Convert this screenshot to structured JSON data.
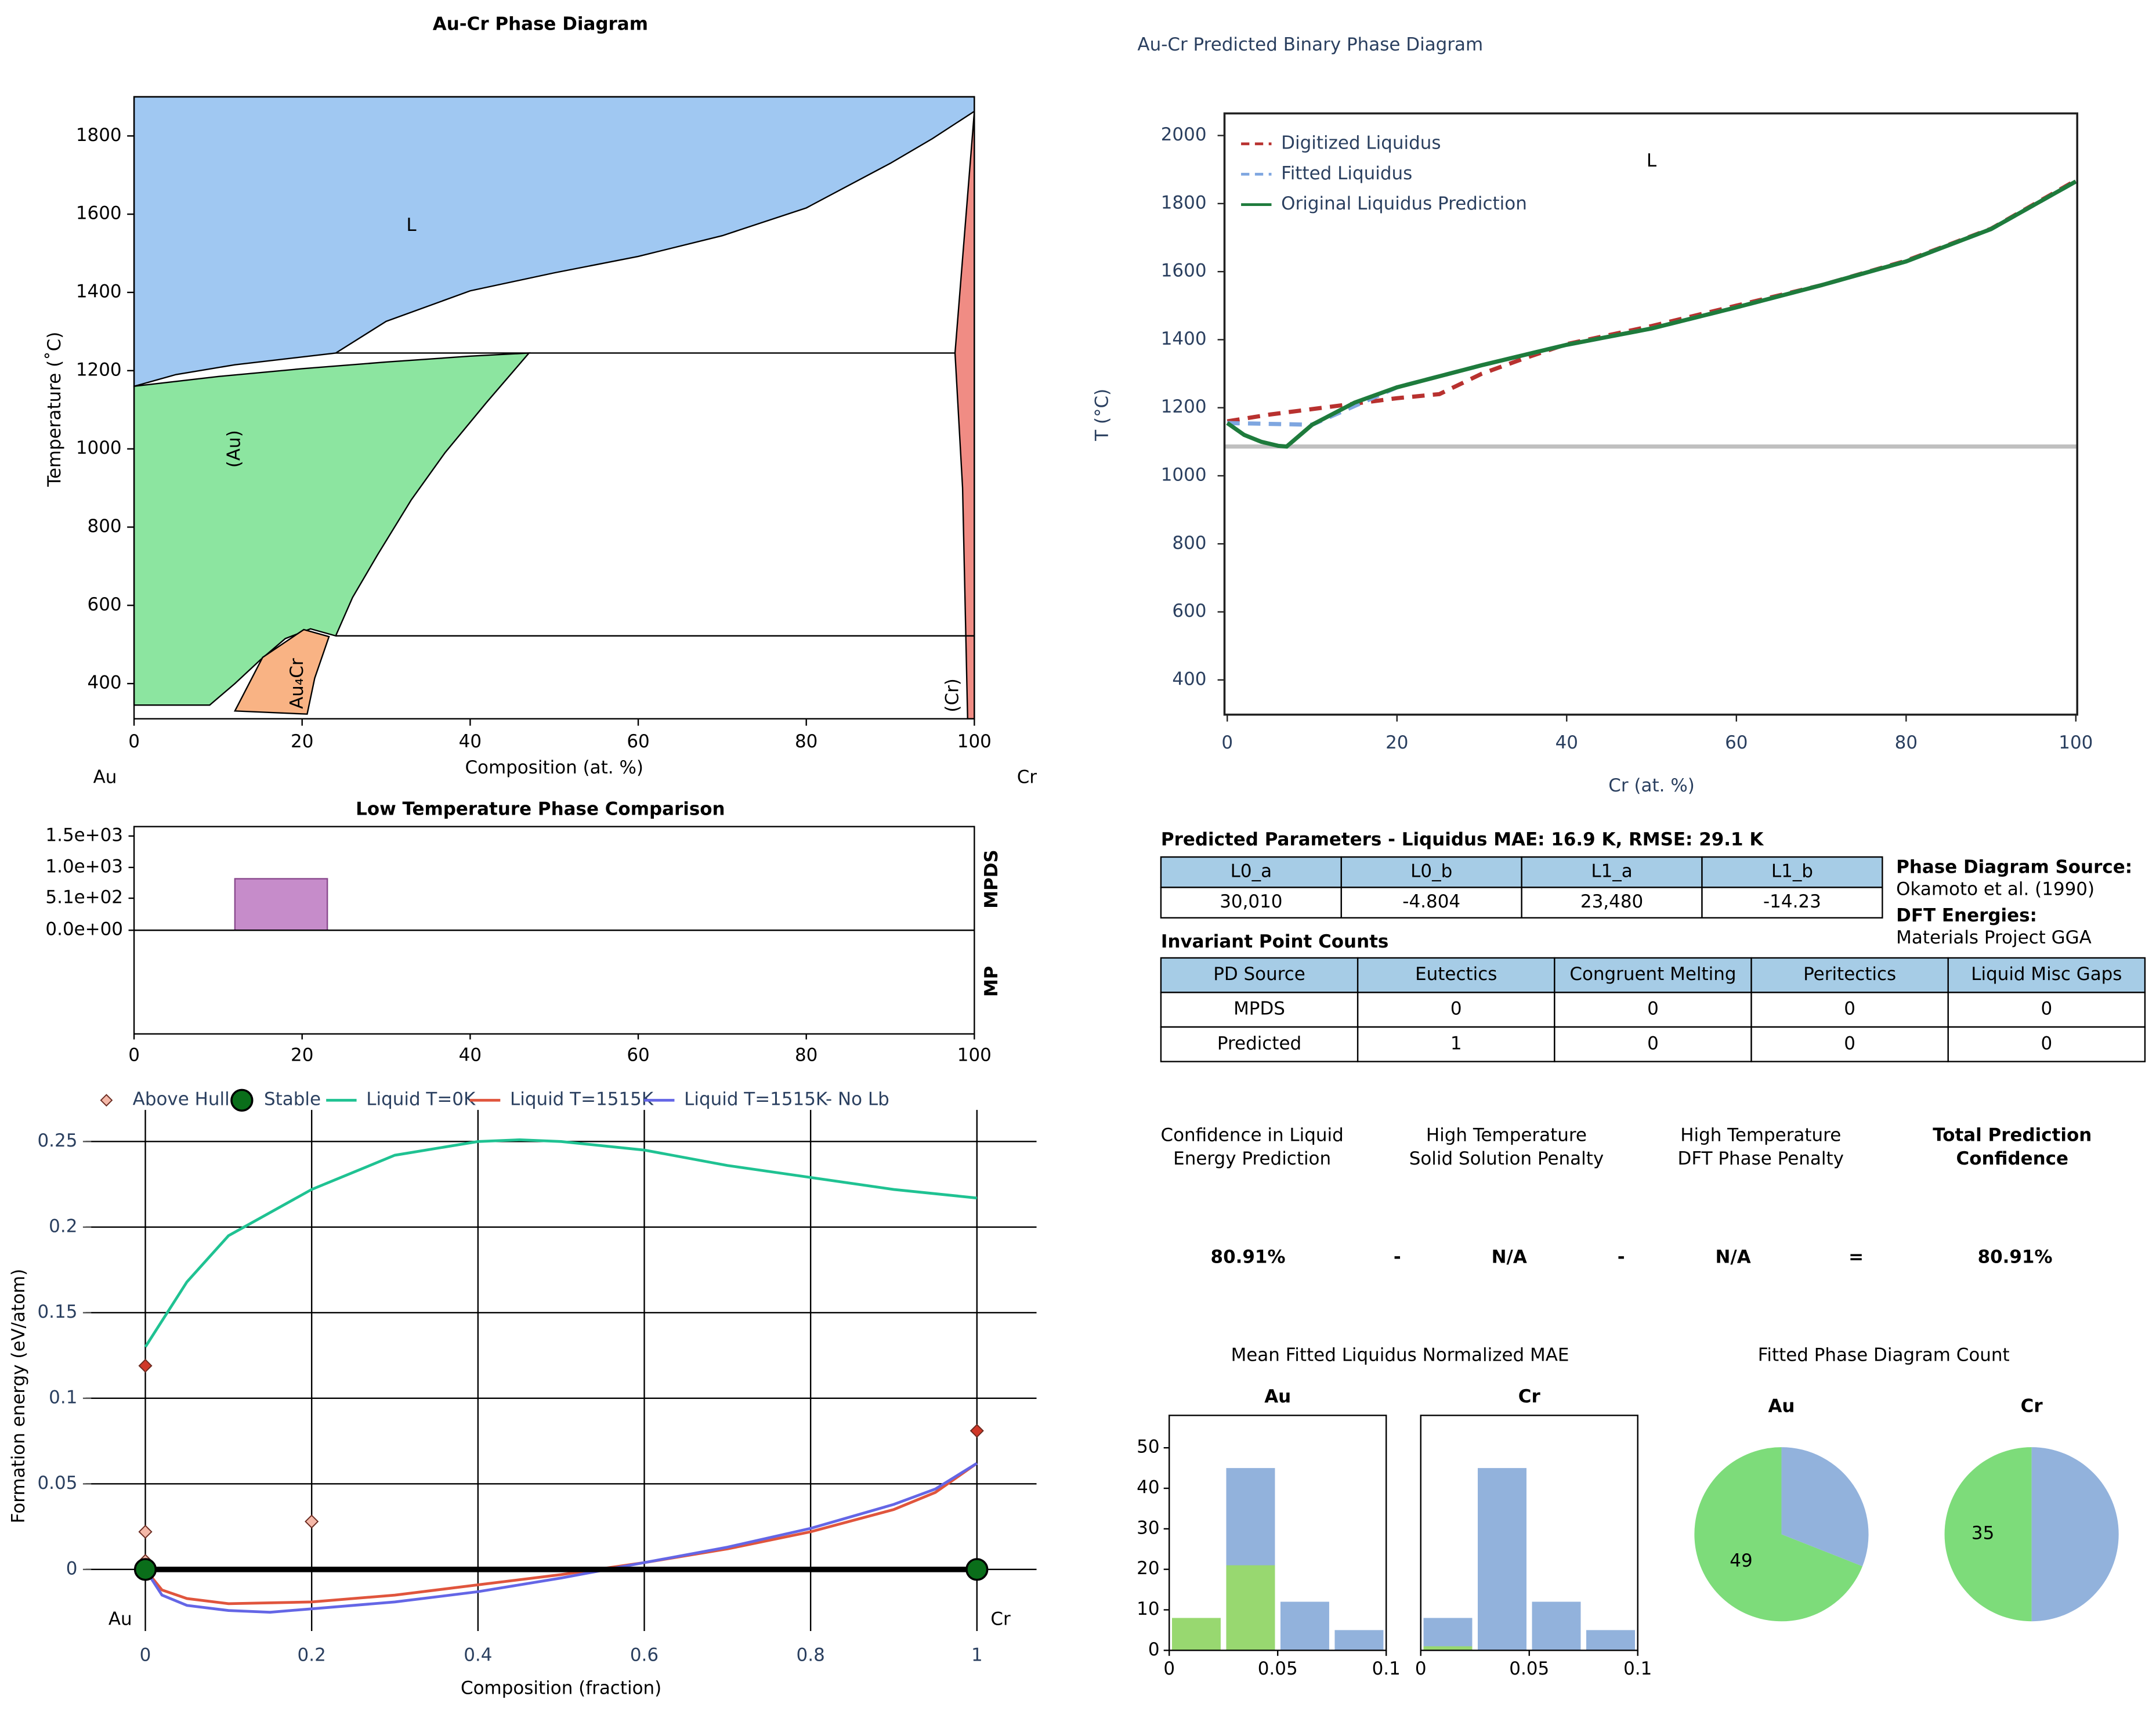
{
  "chart_data": [
    {
      "type": "phase",
      "title": "Au-Cr Phase Diagram",
      "xlabel": "Composition (at. %)",
      "ylabel": "Temperature (˚C)",
      "end_labels": [
        "Au",
        "Cr"
      ],
      "xlim": [
        0,
        100
      ],
      "ylim": [
        310,
        1900
      ],
      "xticks": [
        0,
        20,
        40,
        60,
        80,
        100
      ],
      "yticks": [
        400,
        600,
        800,
        1000,
        1200,
        1400,
        1600,
        1800
      ],
      "regions": [
        {
          "name": "L",
          "color": "#a0c8f2",
          "x": [
            0,
            0,
            100,
            100,
            95,
            90,
            80,
            70,
            60,
            50,
            40,
            30,
            24,
            12,
            5
          ],
          "y": [
            1160,
            1900,
            1900,
            1863,
            1793,
            1730,
            1616,
            1545,
            1492,
            1450,
            1404,
            1326,
            1245,
            1215,
            1190
          ]
        },
        {
          "name": "(Au)",
          "color": "#8ce5a0",
          "x": [
            0,
            10,
            20,
            30,
            40,
            47,
            42,
            37,
            33,
            29,
            26,
            24,
            21,
            18,
            15,
            12,
            9,
            0
          ],
          "y": [
            1160,
            1185,
            1205,
            1222,
            1237,
            1245,
            1120,
            990,
            870,
            730,
            620,
            522,
            540,
            515,
            460,
            400,
            345,
            345
          ]
        },
        {
          "name": "Au₄Cr",
          "color": "#f9b384",
          "x": [
            12,
            15.3,
            20.2,
            23.2,
            21.5,
            20.6
          ],
          "y": [
            330,
            467,
            538,
            520,
            414,
            322
          ]
        },
        {
          "name": "(Cr)",
          "color": "#f08c84",
          "x": [
            97.7,
            100,
            100,
            99.2,
            98.6
          ],
          "y": [
            1245,
            1863,
            310,
            310,
            900
          ]
        }
      ],
      "lines": [
        {
          "x": [
            24,
            97.7
          ],
          "y": [
            1245,
            1245
          ]
        },
        {
          "x": [
            24,
            100
          ],
          "y": [
            522,
            522
          ]
        }
      ]
    },
    {
      "type": "interval_bar",
      "title": "Low Temperature Phase Comparison",
      "rows": [
        "MPDS",
        "MP"
      ],
      "xlim": [
        0,
        100
      ],
      "xticks": [
        0,
        20,
        40,
        60,
        80,
        100
      ],
      "ylim": [
        0,
        1650
      ],
      "yticks": [
        {
          "value": 1500,
          "label": "1.5e+03"
        },
        {
          "value": 1000,
          "label": "1.0e+03"
        },
        {
          "value": 510,
          "label": "5.1e+02"
        },
        {
          "value": 0,
          "label": "0.0e+00"
        }
      ],
      "series": [
        {
          "color": "#c080c4",
          "x_ranges": [
            [
              12,
              23
            ]
          ],
          "values": [
            820
          ]
        }
      ]
    },
    {
      "type": "hull",
      "xlabel": "Composition (fraction)",
      "ylabel": "Formation energy (eV/atom)",
      "end_labels": [
        "Au",
        "Cr"
      ],
      "xlim": [
        -0.1,
        1.075
      ],
      "ylim": [
        -0.04,
        0.262
      ],
      "xticks": [
        0,
        0.2,
        0.4,
        0.6,
        0.8,
        1
      ],
      "yticks": [
        0,
        0.05,
        0.1,
        0.15,
        0.2,
        0.25
      ],
      "grid": true,
      "hull_color": "#000000",
      "series": [
        {
          "name": "Above Hull",
          "mode": "markers",
          "marker": "diamond",
          "color": "#f4b8a8",
          "x": [
            0,
            0,
            0,
            0.2,
            1
          ],
          "values": [
            0.119,
            0.022,
            0.005,
            0.028,
            0.081
          ],
          "point_colors": [
            "#d03828",
            "#f4b8a8",
            "#f4b8a8",
            "#f4b8a8",
            "#d03828"
          ]
        },
        {
          "name": "Stable",
          "mode": "markers",
          "marker": "circle",
          "color": "#0a6e1a",
          "x": [
            0,
            1
          ],
          "values": [
            0,
            0
          ]
        },
        {
          "name": "Liquid T=0K",
          "mode": "lines",
          "color": "#1fc292",
          "x": [
            0,
            0.05,
            0.1,
            0.2,
            0.3,
            0.4,
            0.45,
            0.5,
            0.6,
            0.7,
            0.8,
            0.9,
            1
          ],
          "values": [
            0.13,
            0.168,
            0.195,
            0.222,
            0.242,
            0.25,
            0.251,
            0.25,
            0.245,
            0.236,
            0.229,
            0.222,
            0.217
          ]
        },
        {
          "name": "Liquid T=1515K",
          "mode": "lines",
          "color": "#e0553d",
          "x": [
            0,
            0.02,
            0.05,
            0.1,
            0.2,
            0.3,
            0.4,
            0.5,
            0.6,
            0.7,
            0.8,
            0.9,
            0.95,
            1
          ],
          "values": [
            0,
            -0.012,
            -0.017,
            -0.02,
            -0.019,
            -0.015,
            -0.009,
            -0.003,
            0.004,
            0.012,
            0.022,
            0.035,
            0.045,
            0.062
          ]
        },
        {
          "name": "Liquid T=1515K- No Lb",
          "mode": "lines",
          "color": "#6466e6",
          "x": [
            0,
            0.02,
            0.05,
            0.1,
            0.15,
            0.2,
            0.3,
            0.4,
            0.5,
            0.6,
            0.7,
            0.8,
            0.9,
            0.95,
            1
          ],
          "values": [
            0,
            -0.015,
            -0.021,
            -0.024,
            -0.025,
            -0.023,
            -0.019,
            -0.013,
            -0.005,
            0.004,
            0.013,
            0.024,
            0.038,
            0.047,
            0.062
          ]
        }
      ]
    },
    {
      "type": "line",
      "title": "Au-Cr Predicted Binary Phase Diagram",
      "xlabel": "Cr (at. %)",
      "ylabel": "T (°C)",
      "xlim": [
        0,
        100
      ],
      "ylim": [
        298,
        2065
      ],
      "xticks": [
        0,
        20,
        40,
        60,
        80,
        100
      ],
      "yticks": [
        400,
        600,
        800,
        1000,
        1200,
        1400,
        1600,
        1800,
        2000
      ],
      "legend": "upper left",
      "annotations": [
        {
          "text": "L",
          "x": 50,
          "y": 1923
        }
      ],
      "reference_lines": [
        {
          "y": 1086,
          "color": "#c0c0c0"
        }
      ],
      "series": [
        {
          "name": "Digitized Liquidus",
          "color": "#b8312f",
          "dash": true,
          "x": [
            0,
            5,
            10,
            15,
            20,
            25,
            30,
            35,
            40,
            50,
            60,
            70,
            80,
            90,
            100
          ],
          "values": [
            1160,
            1180,
            1196,
            1212,
            1228,
            1240,
            1300,
            1345,
            1387,
            1440,
            1500,
            1560,
            1632,
            1726,
            1868
          ]
        },
        {
          "name": "Fitted Liquidus",
          "color": "#7ea6e0",
          "dash": true,
          "x": [
            0,
            10,
            20,
            30,
            40,
            50,
            60,
            70,
            80,
            90,
            100
          ],
          "values": [
            1155,
            1150,
            1260,
            1325,
            1385,
            1433,
            1495,
            1560,
            1630,
            1725,
            1865
          ]
        },
        {
          "name": "Original Liquidus Prediction",
          "color": "#1e7b3c",
          "dash": false,
          "x": [
            0,
            2,
            4,
            6,
            7,
            10,
            15,
            20,
            30,
            40,
            50,
            60,
            70,
            80,
            90,
            100
          ],
          "values": [
            1155,
            1120,
            1100,
            1088,
            1086,
            1150,
            1215,
            1260,
            1325,
            1385,
            1433,
            1495,
            1560,
            1630,
            1725,
            1865
          ]
        }
      ]
    },
    {
      "type": "histogram",
      "suptitle": "Mean Fitted Liquidus Normalized MAE",
      "title": "Au",
      "bins": [
        0,
        0.025,
        0.05,
        0.075,
        0.1
      ],
      "xlim": [
        0,
        0.1
      ],
      "ylim": [
        0,
        58
      ],
      "xticks": [
        0,
        0.05,
        0.1
      ],
      "yticks": [
        0,
        10,
        20,
        30,
        40,
        50
      ],
      "series": [
        {
          "color": "#92b2dc",
          "values": [
            0,
            45,
            12,
            5
          ]
        },
        {
          "color": "#98d870",
          "values": [
            8,
            21,
            0,
            0
          ]
        }
      ]
    },
    {
      "type": "histogram",
      "title": "Cr",
      "bins": [
        0,
        0.025,
        0.05,
        0.075,
        0.1
      ],
      "xlim": [
        0,
        0.1
      ],
      "ylim": [
        0,
        58
      ],
      "xticks": [
        0,
        0.05,
        0.1
      ],
      "series": [
        {
          "color": "#92b2dc",
          "values": [
            8,
            45,
            12,
            5
          ]
        },
        {
          "color": "#98d870",
          "values": [
            1,
            0,
            0,
            0
          ]
        }
      ]
    },
    {
      "type": "pie",
      "suptitle": "Fitted Phase Diagram Count",
      "title": "Au",
      "values": [
        49,
        22
      ],
      "colors": [
        "#7ddc7a",
        "#92b2dc"
      ],
      "labeled": [
        true,
        false
      ]
    },
    {
      "type": "pie",
      "title": "Cr",
      "values": [
        35,
        35
      ],
      "colors": [
        "#7ddc7a",
        "#92b2dc"
      ],
      "labeled": [
        true,
        false
      ]
    }
  ],
  "parameters": {
    "title": "Predicted Parameters - Liquidus MAE: 16.9 K, RMSE: 29.1 K",
    "header": [
      "L0_a",
      "L0_b",
      "L1_a",
      "L1_b"
    ],
    "rows": [
      [
        "30,010",
        "-4.804",
        "23,480",
        "-14.23"
      ]
    ]
  },
  "invariants": {
    "title": "Invariant Point Counts",
    "header": [
      "PD Source",
      "Eutectics",
      "Congruent Melting",
      "Peritectics",
      "Liquid Misc Gaps"
    ],
    "rows": [
      [
        "MPDS",
        0,
        0,
        0,
        0
      ],
      [
        "Predicted",
        1,
        0,
        0,
        0
      ]
    ]
  },
  "sources": [
    {
      "label": "Phase Diagram Source:",
      "value": "Okamoto et al. (1990)"
    },
    {
      "label": "DFT Energies:",
      "value": "Materials Project GGA"
    }
  ],
  "confidence": {
    "terms": [
      {
        "label": [
          "Confidence in Liquid",
          "Energy Prediction"
        ],
        "value": "80.91%"
      },
      {
        "label": [
          "High Temperature",
          "Solid Solution Penalty"
        ],
        "value": "N/A"
      },
      {
        "label": [
          "High Temperature",
          "DFT Phase Penalty"
        ],
        "value": "N/A"
      },
      {
        "label": [
          "Total Prediction",
          "Confidence"
        ],
        "value": "80.91%"
      }
    ],
    "operators": [
      "-",
      "-",
      "="
    ]
  }
}
